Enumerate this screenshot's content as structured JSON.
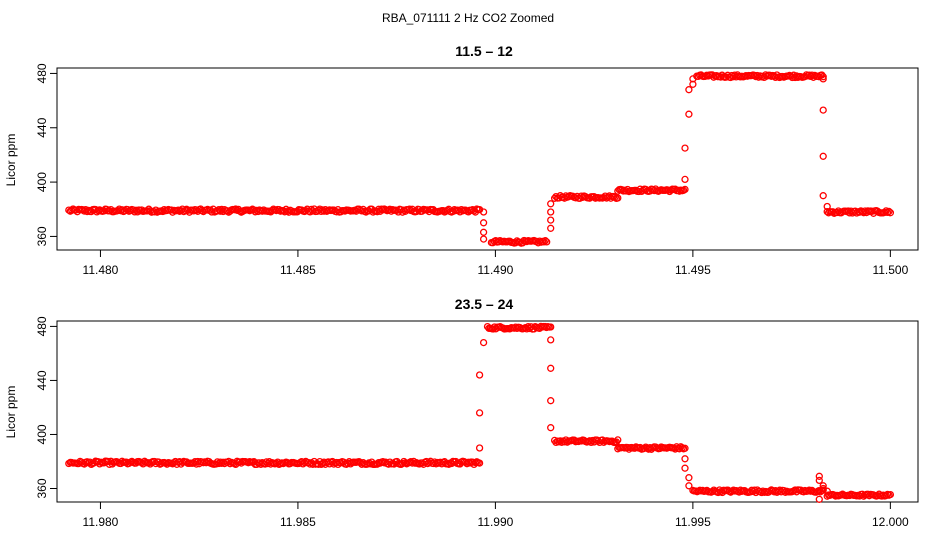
{
  "main_title": "RBA_071111  2 Hz CO2 Zoomed",
  "chart_data": [
    {
      "type": "scatter",
      "title": "11.5 – 12",
      "xlabel": "",
      "ylabel": "Licor ppm",
      "xlim": [
        11.4789,
        11.5007
      ],
      "ylim": [
        350,
        484
      ],
      "xticks": [
        11.48,
        11.485,
        11.49,
        11.495,
        11.5
      ],
      "xtick_labels": [
        "11.480",
        "11.485",
        "11.490",
        "11.495",
        "11.500"
      ],
      "yticks": [
        360,
        400,
        440,
        480
      ],
      "ytick_labels": [
        "360",
        "400",
        "440",
        "480"
      ],
      "marker": "open-circle",
      "color": "#ff0000",
      "grid": false,
      "segments": [
        {
          "x0": 11.4792,
          "x1": 11.4896,
          "y": 379,
          "noise": 1.2
        },
        {
          "x0": 11.4899,
          "x1": 11.4913,
          "y": 356,
          "noise": 1.0
        },
        {
          "x0": 11.4915,
          "x1": 11.4931,
          "y": 389,
          "noise": 1.0
        },
        {
          "x0": 11.4931,
          "x1": 11.4948,
          "y": 394,
          "noise": 1.0
        },
        {
          "x0": 11.4951,
          "x1": 11.4983,
          "y": 478,
          "noise": 1.0
        },
        {
          "x0": 11.4984,
          "x1": 11.5,
          "y": 378,
          "noise": 1.0
        }
      ],
      "transition_points": [
        {
          "x": 11.4897,
          "y": 378
        },
        {
          "x": 11.4897,
          "y": 370
        },
        {
          "x": 11.4897,
          "y": 363
        },
        {
          "x": 11.4897,
          "y": 358
        },
        {
          "x": 11.4914,
          "y": 366
        },
        {
          "x": 11.4914,
          "y": 372
        },
        {
          "x": 11.4914,
          "y": 378
        },
        {
          "x": 11.4914,
          "y": 384
        },
        {
          "x": 11.4948,
          "y": 402
        },
        {
          "x": 11.4948,
          "y": 425
        },
        {
          "x": 11.4949,
          "y": 450
        },
        {
          "x": 11.4949,
          "y": 468
        },
        {
          "x": 11.495,
          "y": 472
        },
        {
          "x": 11.495,
          "y": 476
        },
        {
          "x": 11.4983,
          "y": 476
        },
        {
          "x": 11.4983,
          "y": 453
        },
        {
          "x": 11.4983,
          "y": 419
        },
        {
          "x": 11.4983,
          "y": 390
        },
        {
          "x": 11.4984,
          "y": 382
        }
      ]
    },
    {
      "type": "scatter",
      "title": "23.5 – 24",
      "xlabel": "",
      "ylabel": "Licor ppm",
      "xlim": [
        11.9789,
        12.0007
      ],
      "ylim": [
        350,
        484
      ],
      "xticks": [
        11.98,
        11.985,
        11.99,
        11.995,
        12.0
      ],
      "xtick_labels": [
        "11.980",
        "11.985",
        "11.990",
        "11.995",
        "12.000"
      ],
      "yticks": [
        360,
        400,
        440,
        480
      ],
      "ytick_labels": [
        "360",
        "400",
        "440",
        "480"
      ],
      "marker": "open-circle",
      "color": "#ff0000",
      "grid": false,
      "segments": [
        {
          "x0": 11.9792,
          "x1": 11.9896,
          "y": 379,
          "noise": 1.2
        },
        {
          "x0": 11.9898,
          "x1": 11.9914,
          "y": 479,
          "noise": 1.0
        },
        {
          "x0": 11.9915,
          "x1": 11.9931,
          "y": 395,
          "noise": 1.0
        },
        {
          "x0": 11.9931,
          "x1": 11.9948,
          "y": 390,
          "noise": 1.0
        },
        {
          "x0": 11.995,
          "x1": 11.9983,
          "y": 358,
          "noise": 1.0
        },
        {
          "x0": 11.9984,
          "x1": 12.0,
          "y": 355,
          "noise": 0.8
        }
      ],
      "transition_points": [
        {
          "x": 11.9896,
          "y": 390
        },
        {
          "x": 11.9896,
          "y": 416
        },
        {
          "x": 11.9896,
          "y": 444
        },
        {
          "x": 11.9897,
          "y": 468
        },
        {
          "x": 11.9914,
          "y": 470
        },
        {
          "x": 11.9914,
          "y": 449
        },
        {
          "x": 11.9914,
          "y": 425
        },
        {
          "x": 11.9914,
          "y": 405
        },
        {
          "x": 11.9948,
          "y": 382
        },
        {
          "x": 11.9948,
          "y": 375
        },
        {
          "x": 11.9949,
          "y": 368
        },
        {
          "x": 11.9949,
          "y": 362
        },
        {
          "x": 11.9982,
          "y": 369
        },
        {
          "x": 11.9982,
          "y": 366
        },
        {
          "x": 11.9982,
          "y": 352
        },
        {
          "x": 11.9983,
          "y": 362
        },
        {
          "x": 11.9983,
          "y": 360
        },
        {
          "x": 11.9984,
          "y": 358
        }
      ]
    }
  ]
}
